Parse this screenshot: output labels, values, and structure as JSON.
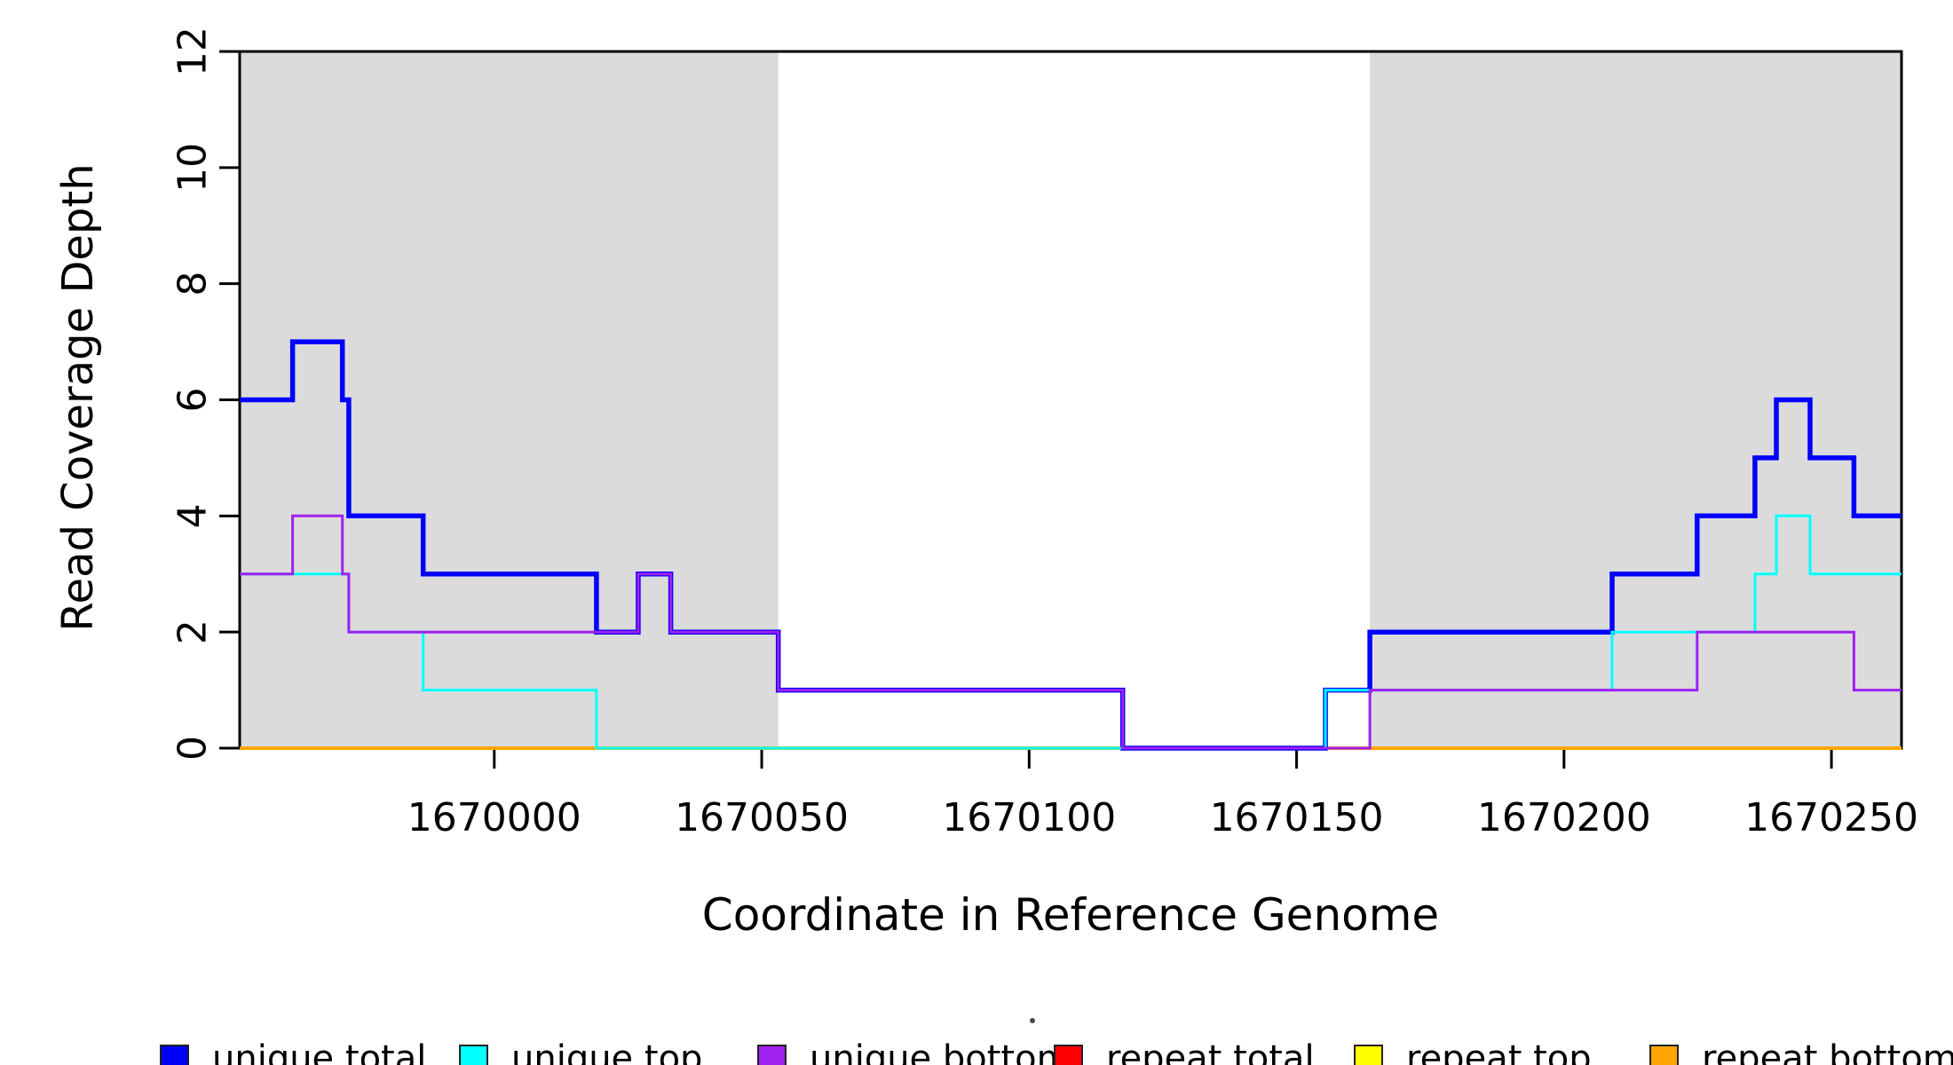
{
  "chart_data": {
    "type": "step-line",
    "title": "",
    "xlabel": "Coordinate in Reference Genome",
    "ylabel": "Read Coverage Depth",
    "xlim": [
      1669952.4,
      1670263.1
    ],
    "ylim": [
      0,
      12
    ],
    "grid": false,
    "background_color": "#FFFFFF",
    "plot_border_color": "#000000",
    "x_ticks": [
      {
        "value": 1670000,
        "label": "1670000"
      },
      {
        "value": 1670050,
        "label": "1670050"
      },
      {
        "value": 1670100,
        "label": "1670100"
      },
      {
        "value": 1670150,
        "label": "1670150"
      },
      {
        "value": 1670200,
        "label": "1670200"
      },
      {
        "value": 1670250,
        "label": "1670250"
      }
    ],
    "y_ticks": [
      {
        "value": 0,
        "label": "0"
      },
      {
        "value": 2,
        "label": "2"
      },
      {
        "value": 4,
        "label": "4"
      },
      {
        "value": 6,
        "label": "6"
      },
      {
        "value": 8,
        "label": "8"
      },
      {
        "value": 10,
        "label": "10"
      },
      {
        "value": 12,
        "label": "12"
      }
    ],
    "shaded_regions": [
      {
        "name": "left-masked-region",
        "x_start": 1669952.4,
        "x_end": 1670053.1,
        "color": "#DBDBDB"
      },
      {
        "name": "right-masked-region",
        "x_start": 1670163.7,
        "x_end": 1670263.1,
        "color": "#DBDBDB"
      }
    ],
    "series": [
      {
        "name": "unique total",
        "color": "#0000FF",
        "line_width": 5.5,
        "z": 4,
        "steps": [
          [
            1669952.4,
            6
          ],
          [
            1669962.3,
            7
          ],
          [
            1669971.6,
            6
          ],
          [
            1669972.8,
            4
          ],
          [
            1669986.7,
            3
          ],
          [
            1670019.1,
            2
          ],
          [
            1670026.9,
            3
          ],
          [
            1670033.0,
            2
          ],
          [
            1670053.1,
            1
          ],
          [
            1670117.5,
            0
          ],
          [
            1670155.4,
            1
          ],
          [
            1670163.7,
            2
          ],
          [
            1670209.0,
            3
          ],
          [
            1670224.9,
            4
          ],
          [
            1670235.7,
            5
          ],
          [
            1670239.7,
            6
          ],
          [
            1670246.0,
            5
          ],
          [
            1670254.2,
            4
          ]
        ]
      },
      {
        "name": "unique top",
        "color": "#00FFFF",
        "line_width": 3,
        "z": 5,
        "steps": [
          [
            1669952.4,
            3
          ],
          [
            1669972.8,
            2
          ],
          [
            1669986.7,
            1
          ],
          [
            1670019.1,
            0
          ],
          [
            1670155.4,
            1
          ],
          [
            1670209.0,
            2
          ],
          [
            1670235.7,
            3
          ],
          [
            1670239.7,
            4
          ],
          [
            1670246.0,
            3
          ]
        ]
      },
      {
        "name": "unique bottom",
        "color": "#A020F0",
        "line_width": 3,
        "z": 6,
        "steps": [
          [
            1669952.4,
            3
          ],
          [
            1669962.3,
            4
          ],
          [
            1669971.6,
            3
          ],
          [
            1669972.8,
            2
          ],
          [
            1670026.9,
            3
          ],
          [
            1670033.0,
            2
          ],
          [
            1670053.1,
            1
          ],
          [
            1670117.5,
            0
          ],
          [
            1670163.7,
            1
          ],
          [
            1670224.9,
            2
          ],
          [
            1670254.2,
            1
          ]
        ]
      },
      {
        "name": "repeat total",
        "color": "#FF0000",
        "line_width": 3,
        "z": 1,
        "steps": [
          [
            1669952.4,
            0
          ]
        ]
      },
      {
        "name": "repeat top",
        "color": "#FFFF00",
        "line_width": 3,
        "z": 2,
        "steps": [
          [
            1669952.4,
            0
          ]
        ]
      },
      {
        "name": "repeat bottom",
        "color": "#FFA500",
        "line_width": 4,
        "z": 3,
        "steps": [
          [
            1669952.4,
            0
          ]
        ]
      }
    ],
    "legend": [
      {
        "label": "unique total",
        "color": "#0000FF"
      },
      {
        "label": "unique top",
        "color": "#00FFFF"
      },
      {
        "label": "unique bottom",
        "color": "#A020F0"
      },
      {
        "label": "repeat total",
        "color": "#FF0000"
      },
      {
        "label": "repeat top",
        "color": "#FFFF00"
      },
      {
        "label": "repeat bottom",
        "color": "#FFA500"
      }
    ],
    "decorations": [
      {
        "name": "stray-dot-artifact",
        "x": 1160,
        "y": 1147,
        "color": "#4a4a4a"
      }
    ]
  }
}
